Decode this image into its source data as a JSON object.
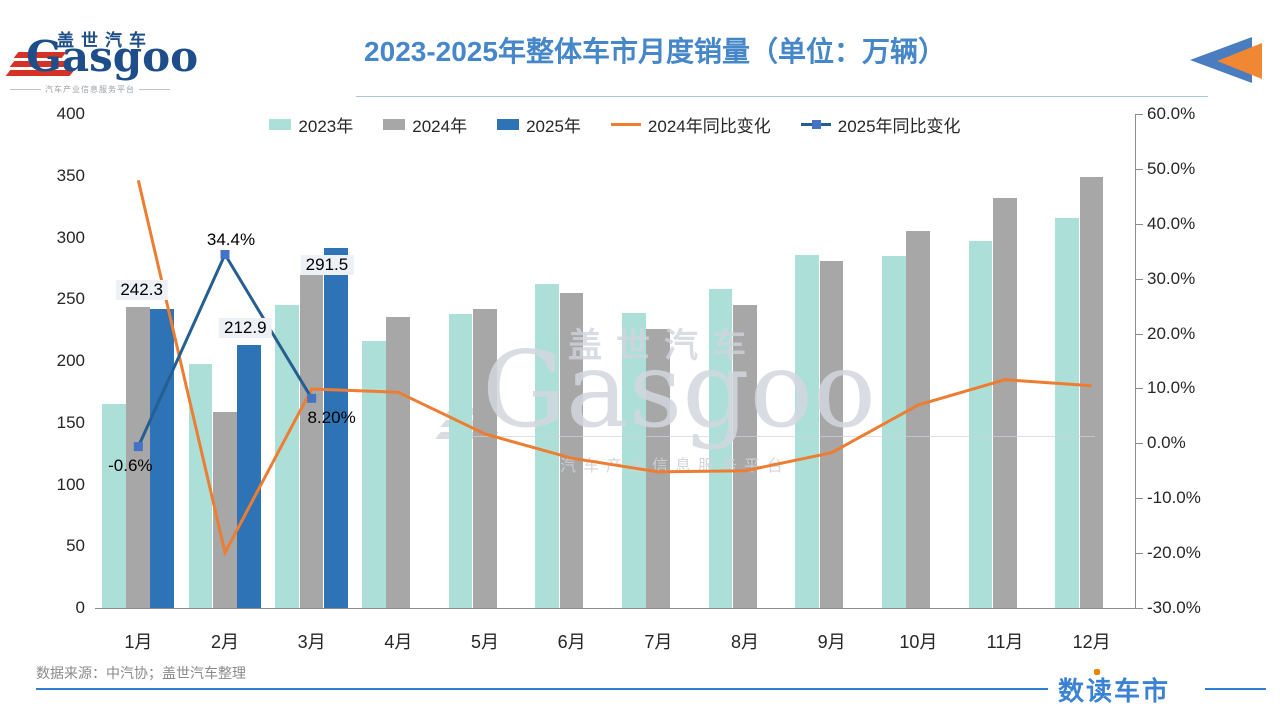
{
  "header": {
    "logo": {
      "name_cn": "盖世汽车",
      "name_en": "Gasgoo",
      "tagline": "汽车产业信息服务平台"
    },
    "title": "2023-2025年整体车市月度销量（单位：万辆）"
  },
  "legend": {
    "items": [
      {
        "label": "2023年",
        "swatch": "rect",
        "color": "#addfd9"
      },
      {
        "label": "2024年",
        "swatch": "rect",
        "color": "#a7a7a7"
      },
      {
        "label": "2025年",
        "swatch": "rect",
        "color": "#2e73b6"
      },
      {
        "label": "2024年同比变化",
        "swatch": "line",
        "color": "#ed7d31"
      },
      {
        "label": "2025年同比变化",
        "swatch": "line-marker",
        "color": "#255e91",
        "marker_color": "#4472c4"
      }
    ]
  },
  "chart_data": {
    "type": "bar+line",
    "title": "2023-2025年整体车市月度销量（单位：万辆）",
    "categories": [
      "1月",
      "2月",
      "3月",
      "4月",
      "5月",
      "6月",
      "7月",
      "8月",
      "9月",
      "10月",
      "11月",
      "12月"
    ],
    "bar_series": [
      {
        "name": "2023年",
        "color": "#addfd9",
        "values": [
          164.9,
          197.6,
          245.1,
          215.9,
          238.2,
          262.2,
          238.7,
          258.2,
          285.8,
          285.3,
          297.2,
          315.6
        ]
      },
      {
        "name": "2024年",
        "color": "#a7a7a7",
        "values": [
          243.9,
          158.4,
          269.4,
          235.9,
          242.2,
          255.2,
          226.2,
          245.3,
          280.9,
          305.3,
          331.8,
          348.9
        ]
      },
      {
        "name": "2025年",
        "color": "#2e73b6",
        "values": [
          242.3,
          212.9,
          291.5,
          null,
          null,
          null,
          null,
          null,
          null,
          null,
          null,
          null
        ],
        "labels": [
          "242.3",
          "212.9",
          "291.5"
        ]
      }
    ],
    "line_series": [
      {
        "name": "2024年同比变化",
        "color": "#ed7d31",
        "axis": "right",
        "values": [
          47.9,
          -19.9,
          9.9,
          9.3,
          1.7,
          -2.7,
          -5.2,
          -5.0,
          -1.7,
          7.0,
          11.6,
          10.5
        ]
      },
      {
        "name": "2025年同比变化",
        "color": "#255e91",
        "marker_color": "#4472c4",
        "axis": "right",
        "values": [
          -0.6,
          34.4,
          8.2
        ],
        "labels": [
          "-0.6%",
          "34.4%",
          "8.20%"
        ]
      }
    ],
    "left_axis": {
      "min": 0,
      "max": 400,
      "ticks": [
        "400",
        "350",
        "300",
        "250",
        "200",
        "150",
        "100",
        "50",
        "0"
      ]
    },
    "right_axis": {
      "min": -30,
      "max": 60,
      "ticks": [
        "60.0%",
        "50.0%",
        "40.0%",
        "30.0%",
        "20.0%",
        "10.0%",
        "0.0%",
        "-10.0%",
        "-20.0%",
        "-30.0%"
      ]
    },
    "grid": "off",
    "legend_position": "top"
  },
  "watermark": {
    "text_en": "Gasgoo",
    "text_cn": "盖世汽车",
    "tagline": "汽车产业信息服务平台"
  },
  "footer": {
    "source": "数据来源：中汽协；盖世汽车整理",
    "brand": "数读车市"
  }
}
